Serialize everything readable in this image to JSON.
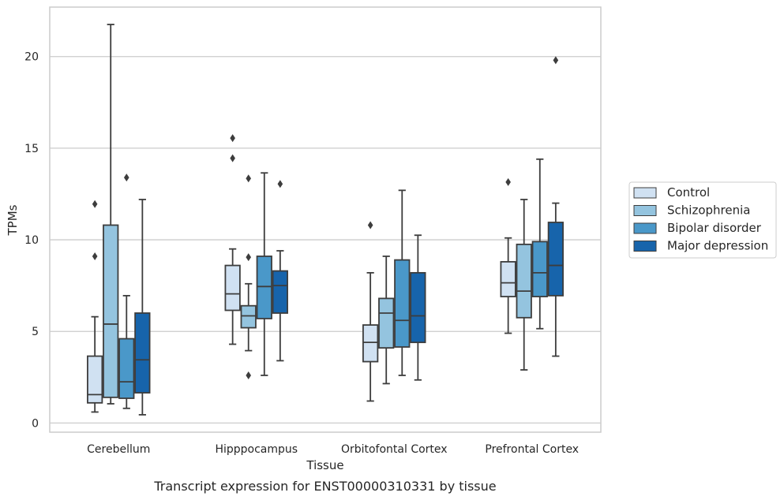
{
  "chart_data": {
    "type": "box",
    "title": "",
    "caption": "Transcript expression for ENST00000310331 by tissue",
    "xlabel": "Tissue",
    "ylabel": "TPMs",
    "ylim": [
      -0.5,
      22.7
    ],
    "yticks": [
      0,
      5,
      10,
      15,
      20
    ],
    "grid": "horizontal",
    "legend_position": "right",
    "categories": [
      "Cerebellum",
      "Hipppocampus",
      "Orbitofontal Cortex",
      "Prefrontal Cortex"
    ],
    "series": [
      {
        "name": "Control",
        "color": "#d0e1f2",
        "boxes": [
          {
            "whislo": 0.6,
            "q1": 1.1,
            "med": 1.55,
            "q3": 3.65,
            "whishi": 5.8,
            "fliers": [
              9.1,
              11.95
            ]
          },
          {
            "whislo": 4.3,
            "q1": 6.15,
            "med": 7.05,
            "q3": 8.6,
            "whishi": 9.5,
            "fliers": [
              14.45,
              15.55
            ]
          },
          {
            "whislo": 1.2,
            "q1": 3.35,
            "med": 4.4,
            "q3": 5.35,
            "whishi": 8.2,
            "fliers": [
              10.8
            ]
          },
          {
            "whislo": 4.9,
            "q1": 6.9,
            "med": 7.65,
            "q3": 8.8,
            "whishi": 10.1,
            "fliers": [
              13.15
            ]
          }
        ]
      },
      {
        "name": "Schizophrenia",
        "color": "#94c4df",
        "boxes": [
          {
            "whislo": 1.05,
            "q1": 1.4,
            "med": 5.4,
            "q3": 10.8,
            "whishi": 21.75,
            "fliers": []
          },
          {
            "whislo": 3.95,
            "q1": 5.2,
            "med": 5.85,
            "q3": 6.4,
            "whishi": 7.6,
            "fliers": [
              2.6,
              9.05,
              13.35
            ]
          },
          {
            "whislo": 2.15,
            "q1": 4.1,
            "med": 6.0,
            "q3": 6.8,
            "whishi": 9.1,
            "fliers": []
          },
          {
            "whislo": 2.9,
            "q1": 5.75,
            "med": 7.2,
            "q3": 9.75,
            "whishi": 12.2,
            "fliers": []
          }
        ]
      },
      {
        "name": "Bipolar disorder",
        "color": "#4a98c9",
        "boxes": [
          {
            "whislo": 0.8,
            "q1": 1.35,
            "med": 2.25,
            "q3": 4.6,
            "whishi": 6.95,
            "fliers": [
              13.4
            ]
          },
          {
            "whislo": 2.6,
            "q1": 5.7,
            "med": 7.45,
            "q3": 9.1,
            "whishi": 13.65,
            "fliers": []
          },
          {
            "whislo": 2.6,
            "q1": 4.15,
            "med": 5.6,
            "q3": 8.9,
            "whishi": 12.7,
            "fliers": []
          },
          {
            "whislo": 5.15,
            "q1": 6.9,
            "med": 8.2,
            "q3": 9.9,
            "whishi": 14.4,
            "fliers": []
          }
        ]
      },
      {
        "name": "Major depression",
        "color": "#1764ab",
        "boxes": [
          {
            "whislo": 0.45,
            "q1": 1.65,
            "med": 3.45,
            "q3": 6.0,
            "whishi": 12.2,
            "fliers": []
          },
          {
            "whislo": 3.4,
            "q1": 6.0,
            "med": 7.5,
            "q3": 8.3,
            "whishi": 9.4,
            "fliers": [
              13.05
            ]
          },
          {
            "whislo": 2.35,
            "q1": 4.4,
            "med": 5.85,
            "q3": 8.2,
            "whishi": 10.25,
            "fliers": []
          },
          {
            "whislo": 3.65,
            "q1": 6.95,
            "med": 8.6,
            "q3": 10.95,
            "whishi": 12.0,
            "fliers": [
              19.8
            ]
          }
        ]
      }
    ]
  }
}
